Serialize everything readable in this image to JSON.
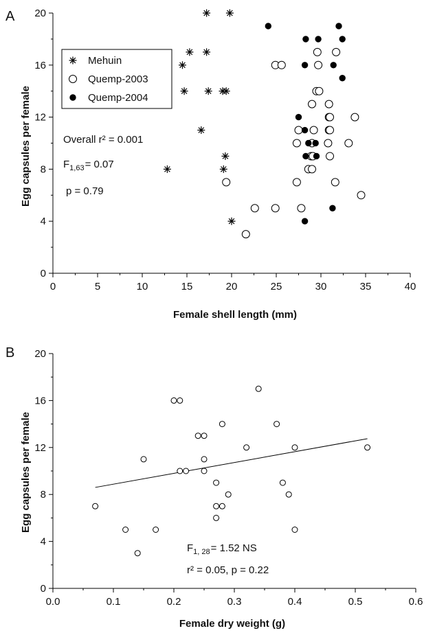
{
  "chart_data": [
    {
      "panel": "A",
      "type": "scatter",
      "xlabel": "Female shell length (mm)",
      "ylabel": "Egg capsules per female",
      "xlim": [
        0,
        40
      ],
      "ylim": [
        0,
        20
      ],
      "xticks": [
        "0",
        "5",
        "10",
        "15",
        "20",
        "25",
        "30",
        "35",
        "40"
      ],
      "yticks": [
        "0",
        "4",
        "8",
        "12",
        "16",
        "20"
      ],
      "legend": "top-left",
      "series": [
        {
          "name": "Mehuin",
          "marker": "asterisk",
          "points": [
            [
              17.2,
              20
            ],
            [
              19.8,
              20
            ],
            [
              15.3,
              17
            ],
            [
              17.2,
              17
            ],
            [
              14.5,
              16
            ],
            [
              14.7,
              14
            ],
            [
              17.4,
              14
            ],
            [
              19.0,
              14
            ],
            [
              19.4,
              14
            ],
            [
              16.6,
              11
            ],
            [
              19.3,
              9
            ],
            [
              12.8,
              8
            ],
            [
              19.1,
              8
            ],
            [
              20.0,
              4
            ]
          ]
        },
        {
          "name": "Quemp-2003",
          "marker": "open-circle",
          "points": [
            [
              29.6,
              17
            ],
            [
              31.7,
              17
            ],
            [
              24.9,
              16
            ],
            [
              25.6,
              16
            ],
            [
              29.7,
              16
            ],
            [
              29.5,
              14
            ],
            [
              29.8,
              14
            ],
            [
              30.9,
              13
            ],
            [
              29.0,
              13
            ],
            [
              27.5,
              11
            ],
            [
              29.2,
              11
            ],
            [
              30.9,
              11
            ],
            [
              31.0,
              11
            ],
            [
              30.9,
              12
            ],
            [
              31.0,
              12
            ],
            [
              33.8,
              12
            ],
            [
              27.3,
              10
            ],
            [
              29.0,
              10
            ],
            [
              30.8,
              10
            ],
            [
              33.1,
              10
            ],
            [
              28.9,
              9
            ],
            [
              29.1,
              9
            ],
            [
              31.0,
              9
            ],
            [
              28.6,
              8
            ],
            [
              29.0,
              8
            ],
            [
              19.4,
              7
            ],
            [
              27.3,
              7
            ],
            [
              31.6,
              7
            ],
            [
              34.5,
              6
            ],
            [
              22.6,
              5
            ],
            [
              24.9,
              5
            ],
            [
              27.8,
              5
            ],
            [
              21.6,
              3
            ]
          ]
        },
        {
          "name": "Quemp-2004",
          "marker": "filled-circle",
          "points": [
            [
              24.1,
              19
            ],
            [
              32.0,
              19
            ],
            [
              28.3,
              18
            ],
            [
              29.7,
              18
            ],
            [
              32.4,
              18
            ],
            [
              28.2,
              16
            ],
            [
              31.4,
              16
            ],
            [
              32.4,
              15
            ],
            [
              27.5,
              12
            ],
            [
              28.6,
              10
            ],
            [
              29.4,
              10
            ],
            [
              28.2,
              11
            ],
            [
              28.3,
              9
            ],
            [
              29.5,
              9
            ],
            [
              31.3,
              5
            ],
            [
              28.2,
              4
            ]
          ]
        }
      ],
      "annotations": {
        "r2": "Overall r² = 0.001",
        "f": "F",
        "f_sub": "1,63",
        "f_val": "= 0.07",
        "p": "p = 0.79"
      }
    },
    {
      "panel": "B",
      "type": "scatter",
      "xlabel": "Female dry weight (g)",
      "ylabel": "Egg capsules per female",
      "xlim": [
        0,
        0.6
      ],
      "ylim": [
        0,
        20
      ],
      "xticks": [
        "0.0",
        "0.1",
        "0.2",
        "0.3",
        "0.4",
        "0.5",
        "0.6"
      ],
      "yticks": [
        "0",
        "4",
        "8",
        "12",
        "16",
        "20"
      ],
      "series": [
        {
          "marker": "open-circle",
          "points": [
            [
              0.07,
              7
            ],
            [
              0.12,
              5
            ],
            [
              0.14,
              3
            ],
            [
              0.15,
              11
            ],
            [
              0.17,
              5
            ],
            [
              0.2,
              16
            ],
            [
              0.21,
              16
            ],
            [
              0.21,
              10
            ],
            [
              0.22,
              10
            ],
            [
              0.24,
              13
            ],
            [
              0.25,
              13
            ],
            [
              0.25,
              11
            ],
            [
              0.25,
              10
            ],
            [
              0.27,
              9
            ],
            [
              0.27,
              7
            ],
            [
              0.27,
              6
            ],
            [
              0.28,
              7
            ],
            [
              0.28,
              14
            ],
            [
              0.29,
              8
            ],
            [
              0.32,
              12
            ],
            [
              0.34,
              17
            ],
            [
              0.37,
              14
            ],
            [
              0.38,
              9
            ],
            [
              0.39,
              8
            ],
            [
              0.4,
              12
            ],
            [
              0.4,
              5
            ],
            [
              0.52,
              12
            ]
          ]
        }
      ],
      "fit_line": {
        "x": [
          0.07,
          0.52
        ],
        "y": [
          8.6,
          12.75
        ]
      },
      "annotations": {
        "f": "F",
        "f_sub": "1, 28",
        "f_val": "= 1.52  NS",
        "r2p": "r² = 0.05, p = 0.22"
      }
    }
  ]
}
